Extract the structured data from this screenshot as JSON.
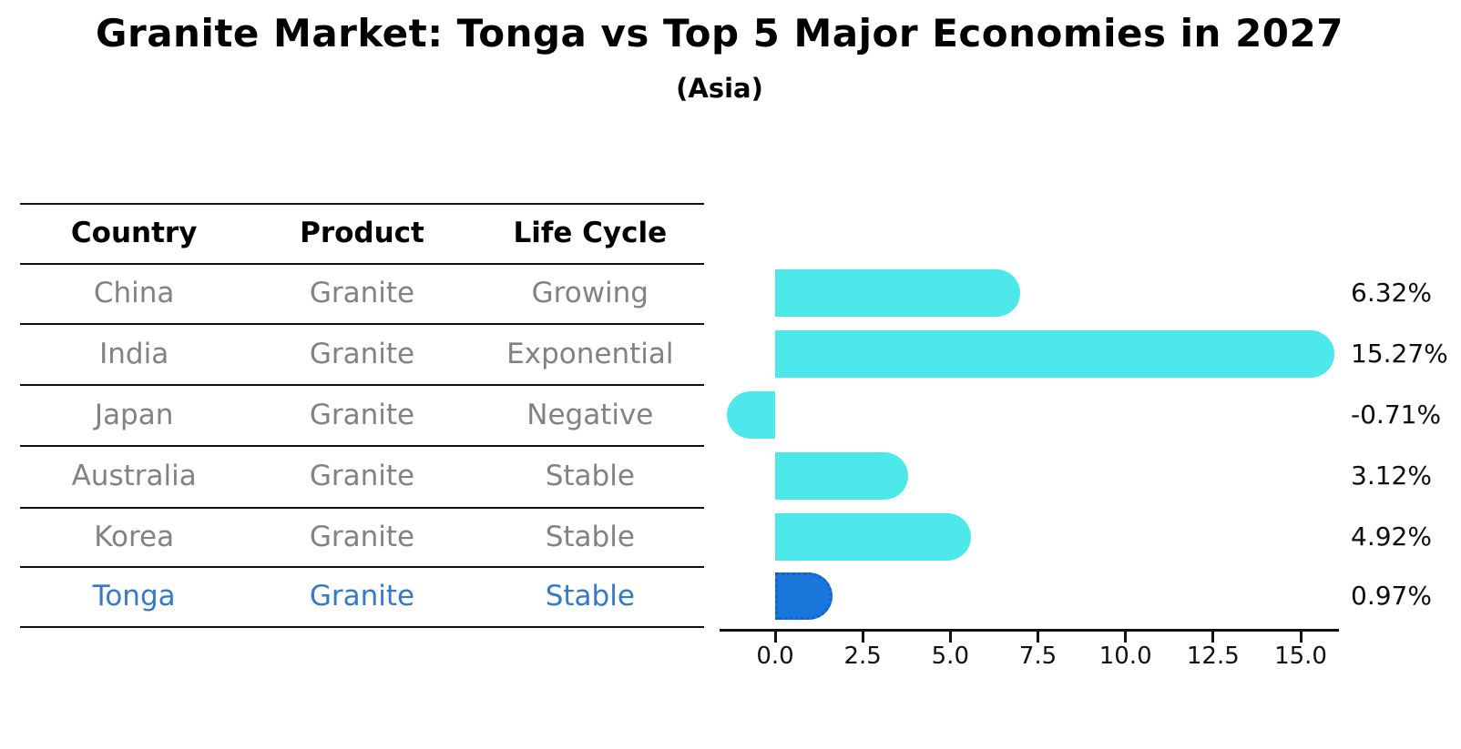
{
  "title": "Granite Market: Tonga vs Top 5 Major Economies in 2027",
  "subtitle": "(Asia)",
  "table": {
    "headers": [
      "Country",
      "Product",
      "Life Cycle"
    ],
    "rows": [
      {
        "country": "China",
        "product": "Granite",
        "life_cycle": "Growing",
        "highlight": false
      },
      {
        "country": "India",
        "product": "Granite",
        "life_cycle": "Exponential",
        "highlight": false
      },
      {
        "country": "Japan",
        "product": "Granite",
        "life_cycle": "Negative",
        "highlight": false
      },
      {
        "country": "Australia",
        "product": "Granite",
        "life_cycle": "Stable",
        "highlight": false
      },
      {
        "country": "Korea",
        "product": "Granite",
        "life_cycle": "Stable",
        "highlight": false
      },
      {
        "country": "Tonga",
        "product": "Granite",
        "life_cycle": "Stable",
        "highlight": true
      }
    ]
  },
  "chart_data": {
    "type": "bar",
    "orientation": "horizontal",
    "categories": [
      "China",
      "India",
      "Japan",
      "Australia",
      "Korea",
      "Tonga"
    ],
    "values": [
      6.32,
      15.27,
      -0.71,
      3.12,
      4.92,
      0.97
    ],
    "value_labels": [
      "6.32%",
      "15.27%",
      "-0.71%",
      "3.12%",
      "4.92%",
      "0.97%"
    ],
    "x_ticks": [
      "0.0",
      "2.5",
      "5.0",
      "7.5",
      "10.0",
      "12.5",
      "15.0"
    ],
    "x_tick_values": [
      0,
      2.5,
      5,
      7.5,
      10,
      12.5,
      15
    ],
    "xlim": [
      -1.6,
      16.1
    ],
    "grid": false,
    "legend": "none",
    "highlight_index": 5,
    "title": "Granite Market: Tonga vs Top 5 Major Economies in 2027",
    "subtitle": "(Asia)"
  },
  "colors": {
    "bar": "#4de8ea",
    "highlight_bar": "#1b76db",
    "highlight_border": "#0f62c8",
    "highlight_text": "#3779c5",
    "table_text": "#828282",
    "ink": "#111111"
  }
}
